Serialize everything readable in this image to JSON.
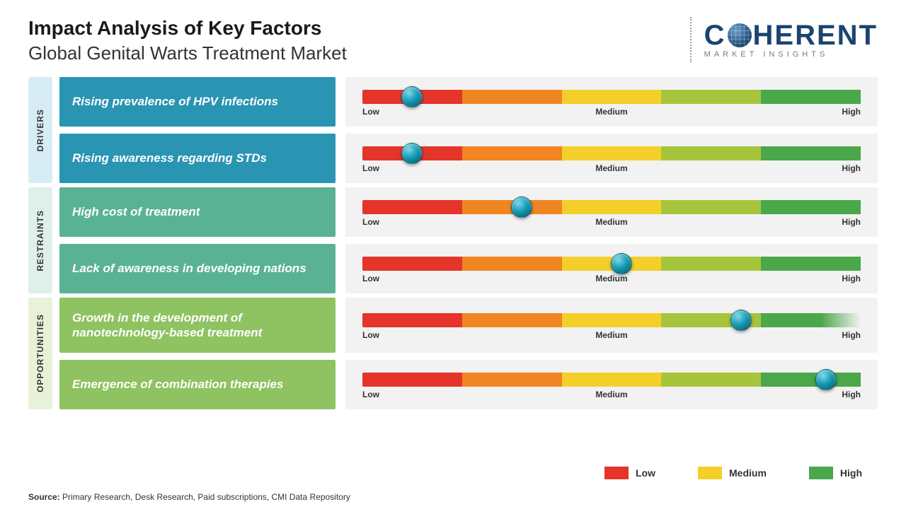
{
  "title": "Impact Analysis of Key Factors",
  "subtitle": "Global Genital Warts Treatment Market",
  "logo": {
    "brand_top": "C",
    "brand_rest": "HERENT",
    "brand_sub": "MARKET INSIGHTS",
    "brand_color": "#1b4470"
  },
  "scale": {
    "labels": {
      "low": "Low",
      "medium": "Medium",
      "high": "High"
    },
    "segment_colors": [
      "#e5342a",
      "#f08522",
      "#f4cf2a",
      "#a6c53c",
      "#4aa74a"
    ]
  },
  "categories": [
    {
      "name": "DRIVERS",
      "tab_bg": "#d7ecf5",
      "box_bg": "#2a94b3",
      "rows": [
        {
          "label": "Rising prevalence of HPV infections",
          "marker_pct": 10,
          "fade_last": false
        },
        {
          "label": "Rising awareness regarding STDs",
          "marker_pct": 10,
          "fade_last": false
        }
      ]
    },
    {
      "name": "RESTRAINTS",
      "tab_bg": "#dff0ea",
      "box_bg": "#5ab295",
      "rows": [
        {
          "label": "High cost of treatment",
          "marker_pct": 32,
          "fade_last": false
        },
        {
          "label": "Lack of awareness in developing nations",
          "marker_pct": 52,
          "fade_last": false
        }
      ]
    },
    {
      "name": "OPPORTUNITIES",
      "tab_bg": "#e7f2d9",
      "box_bg": "#8fc260",
      "rows": [
        {
          "label": "Growth in the development of nanotechnology-based treatment",
          "marker_pct": 76,
          "fade_last": true,
          "tall": true
        },
        {
          "label": "Emergence of combination therapies",
          "marker_pct": 93,
          "fade_last": false
        }
      ]
    }
  ],
  "legend": {
    "items": [
      {
        "label": "Low",
        "color": "#e5342a"
      },
      {
        "label": "Medium",
        "color": "#f4cf2a"
      },
      {
        "label": "High",
        "color": "#4aa74a"
      }
    ]
  },
  "source": {
    "prefix": "Source:",
    "text": "Primary Research, Desk Research, Paid subscriptions, CMI Data Repository"
  }
}
